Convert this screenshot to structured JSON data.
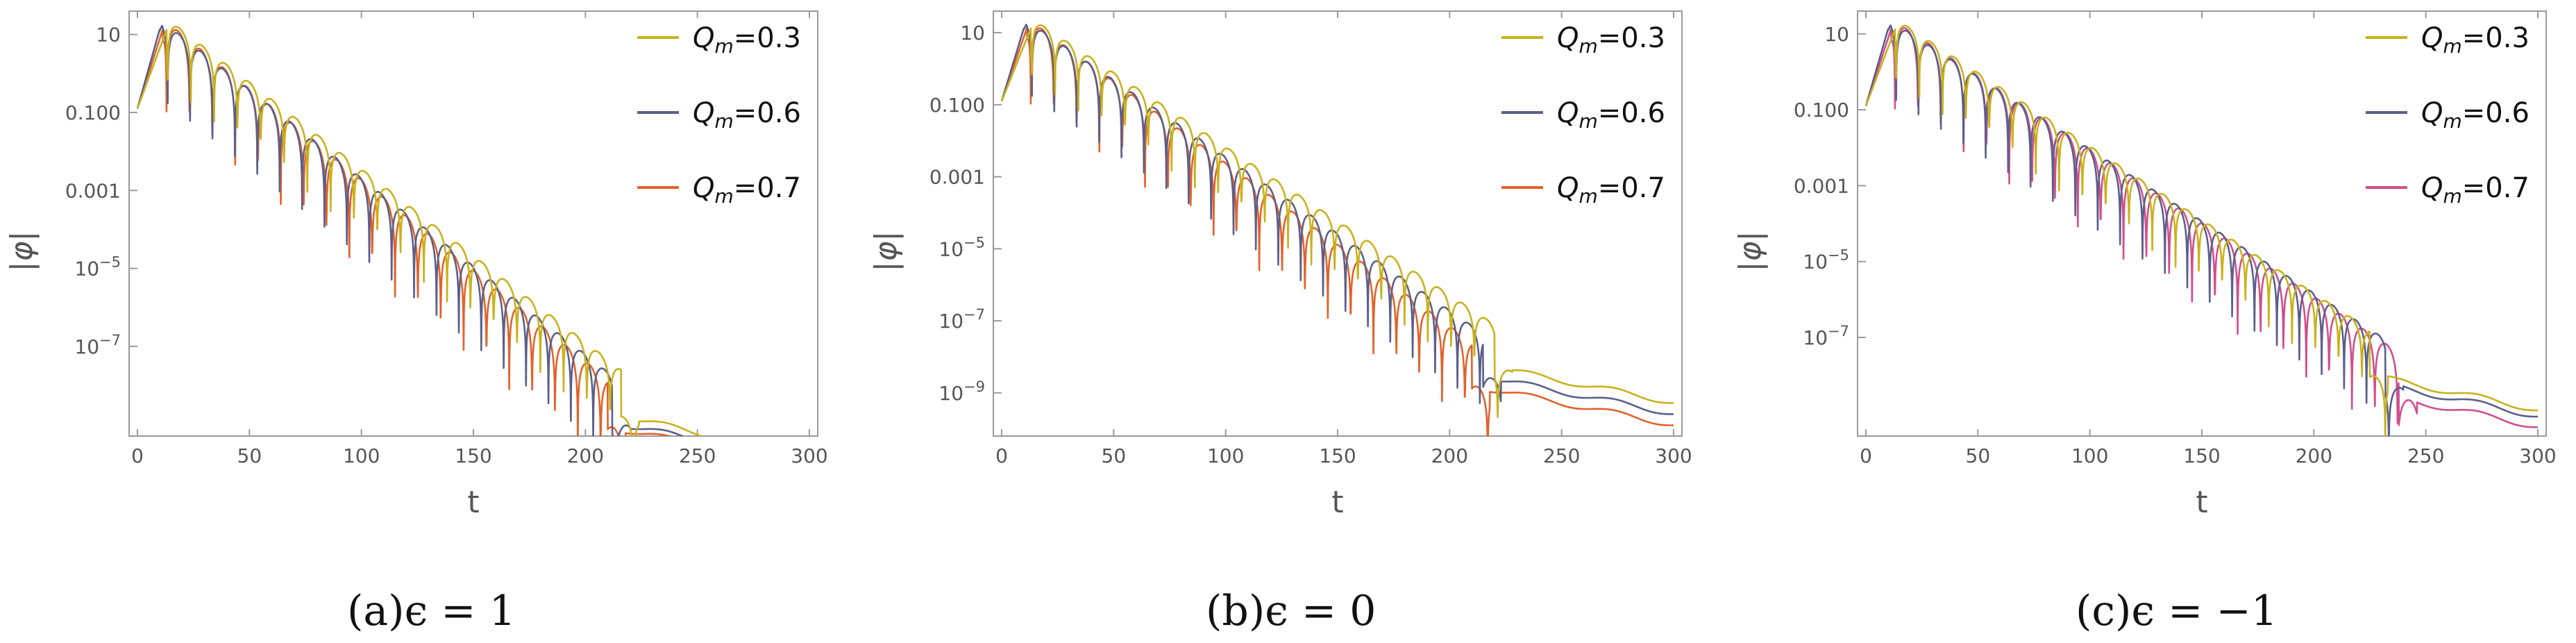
{
  "colors": {
    "s03": "#c9b21c",
    "s06": "#5b5f8a",
    "s07": "#e2622b",
    "s07c": "#d04f8d"
  },
  "legend_labels": [
    {
      "sym": "Q",
      "sub": "m",
      "val": "=0.3"
    },
    {
      "sym": "Q",
      "sub": "m",
      "val": "=0.6"
    },
    {
      "sym": "Q",
      "sub": "m",
      "val": "=0.7"
    }
  ],
  "chart_data": [
    {
      "type": "line",
      "caption": "(a)ϵ = 1",
      "xlabel": "t",
      "ylabel": "|φ|",
      "xlim": [
        0,
        300
      ],
      "ylim_log10": [
        -9.3,
        1.6
      ],
      "y_scale": "log",
      "xticks": [
        0,
        50,
        100,
        150,
        200,
        250,
        300
      ],
      "yticks": [
        {
          "value": 10,
          "label": "10"
        },
        {
          "value": 0.1,
          "label": "0.100"
        },
        {
          "value": 0.001,
          "label": "0.001"
        },
        {
          "value": 1e-05,
          "label": "10",
          "exp": "−5"
        },
        {
          "value": 1e-07,
          "label": "10",
          "exp": "−7"
        }
      ],
      "legend_position": "top-right",
      "series": [
        {
          "name": "Qm=0.3",
          "color_key": "s03",
          "peak_t": 14.5,
          "period": 10.4,
          "phase": 0.6,
          "tail_start": 216,
          "tail_y": -8.8,
          "depth": 1.7
        },
        {
          "name": "Qm=0.6",
          "color_key": "s06",
          "peak_t": 11,
          "period": 10.0,
          "phase": 0.25,
          "tail_start": 212,
          "tail_y": -8.95,
          "depth": 2.0
        },
        {
          "name": "Qm=0.7",
          "color_key": "s07",
          "peak_t": 12.5,
          "period": 10.2,
          "phase": 0.45,
          "tail_start": 210,
          "tail_y": -9.05,
          "depth": 2.3
        }
      ]
    },
    {
      "type": "line",
      "caption": "(b)ϵ = 0",
      "xlabel": "t",
      "ylabel": "|φ|",
      "xlim": [
        0,
        300
      ],
      "ylim_log10": [
        -10.2,
        1.6
      ],
      "y_scale": "log",
      "xticks": [
        0,
        50,
        100,
        150,
        200,
        250,
        300
      ],
      "yticks": [
        {
          "value": 10,
          "label": "10"
        },
        {
          "value": 0.1,
          "label": "0.100"
        },
        {
          "value": 0.001,
          "label": "0.001"
        },
        {
          "value": 1e-05,
          "label": "10",
          "exp": "−5"
        },
        {
          "value": 1e-07,
          "label": "10",
          "exp": "−7"
        },
        {
          "value": 1e-09,
          "label": "10",
          "exp": "−9"
        }
      ],
      "legend_position": "top-right",
      "series": [
        {
          "name": "Qm=0.3",
          "color_key": "s03",
          "peak_t": 14.5,
          "period": 10.4,
          "phase": 0.6,
          "tail_start": 220,
          "tail_y": -8.3,
          "depth": 1.7
        },
        {
          "name": "Qm=0.6",
          "color_key": "s06",
          "peak_t": 11,
          "period": 10.0,
          "phase": 0.25,
          "tail_start": 215,
          "tail_y": -8.55,
          "depth": 2.0
        },
        {
          "name": "Qm=0.7",
          "color_key": "s07",
          "peak_t": 12.5,
          "period": 10.2,
          "phase": 0.45,
          "tail_start": 210,
          "tail_y": -8.8,
          "depth": 2.3
        }
      ]
    },
    {
      "type": "line",
      "caption": "(c)ϵ = −1",
      "xlabel": "t",
      "ylabel": "|φ|",
      "xlim": [
        0,
        300
      ],
      "ylim_log10": [
        -9.6,
        1.6
      ],
      "y_scale": "log",
      "xticks": [
        0,
        50,
        100,
        150,
        200,
        250,
        300
      ],
      "yticks": [
        {
          "value": 10,
          "label": "10"
        },
        {
          "value": 0.1,
          "label": "0.100"
        },
        {
          "value": 0.001,
          "label": "0.001"
        },
        {
          "value": 1e-05,
          "label": "10",
          "exp": "−5"
        },
        {
          "value": 1e-07,
          "label": "10",
          "exp": "−7"
        }
      ],
      "legend_position": "top-right",
      "series": [
        {
          "name": "Qm=0.3",
          "color_key": "s03",
          "peak_t": 14.5,
          "period": 10.4,
          "phase": 0.6,
          "tail_start": 225,
          "tail_y": -8.0,
          "depth": 1.7
        },
        {
          "name": "Qm=0.6",
          "color_key": "s06",
          "peak_t": 11,
          "period": 10.0,
          "phase": 0.25,
          "tail_start": 232,
          "tail_y": -8.25,
          "depth": 2.0
        },
        {
          "name": "Qm=0.7",
          "color_key": "s07c",
          "peak_t": 12.5,
          "period": 10.2,
          "phase": 0.45,
          "tail_start": 238,
          "tail_y": -8.6,
          "depth": 2.3
        }
      ]
    }
  ]
}
